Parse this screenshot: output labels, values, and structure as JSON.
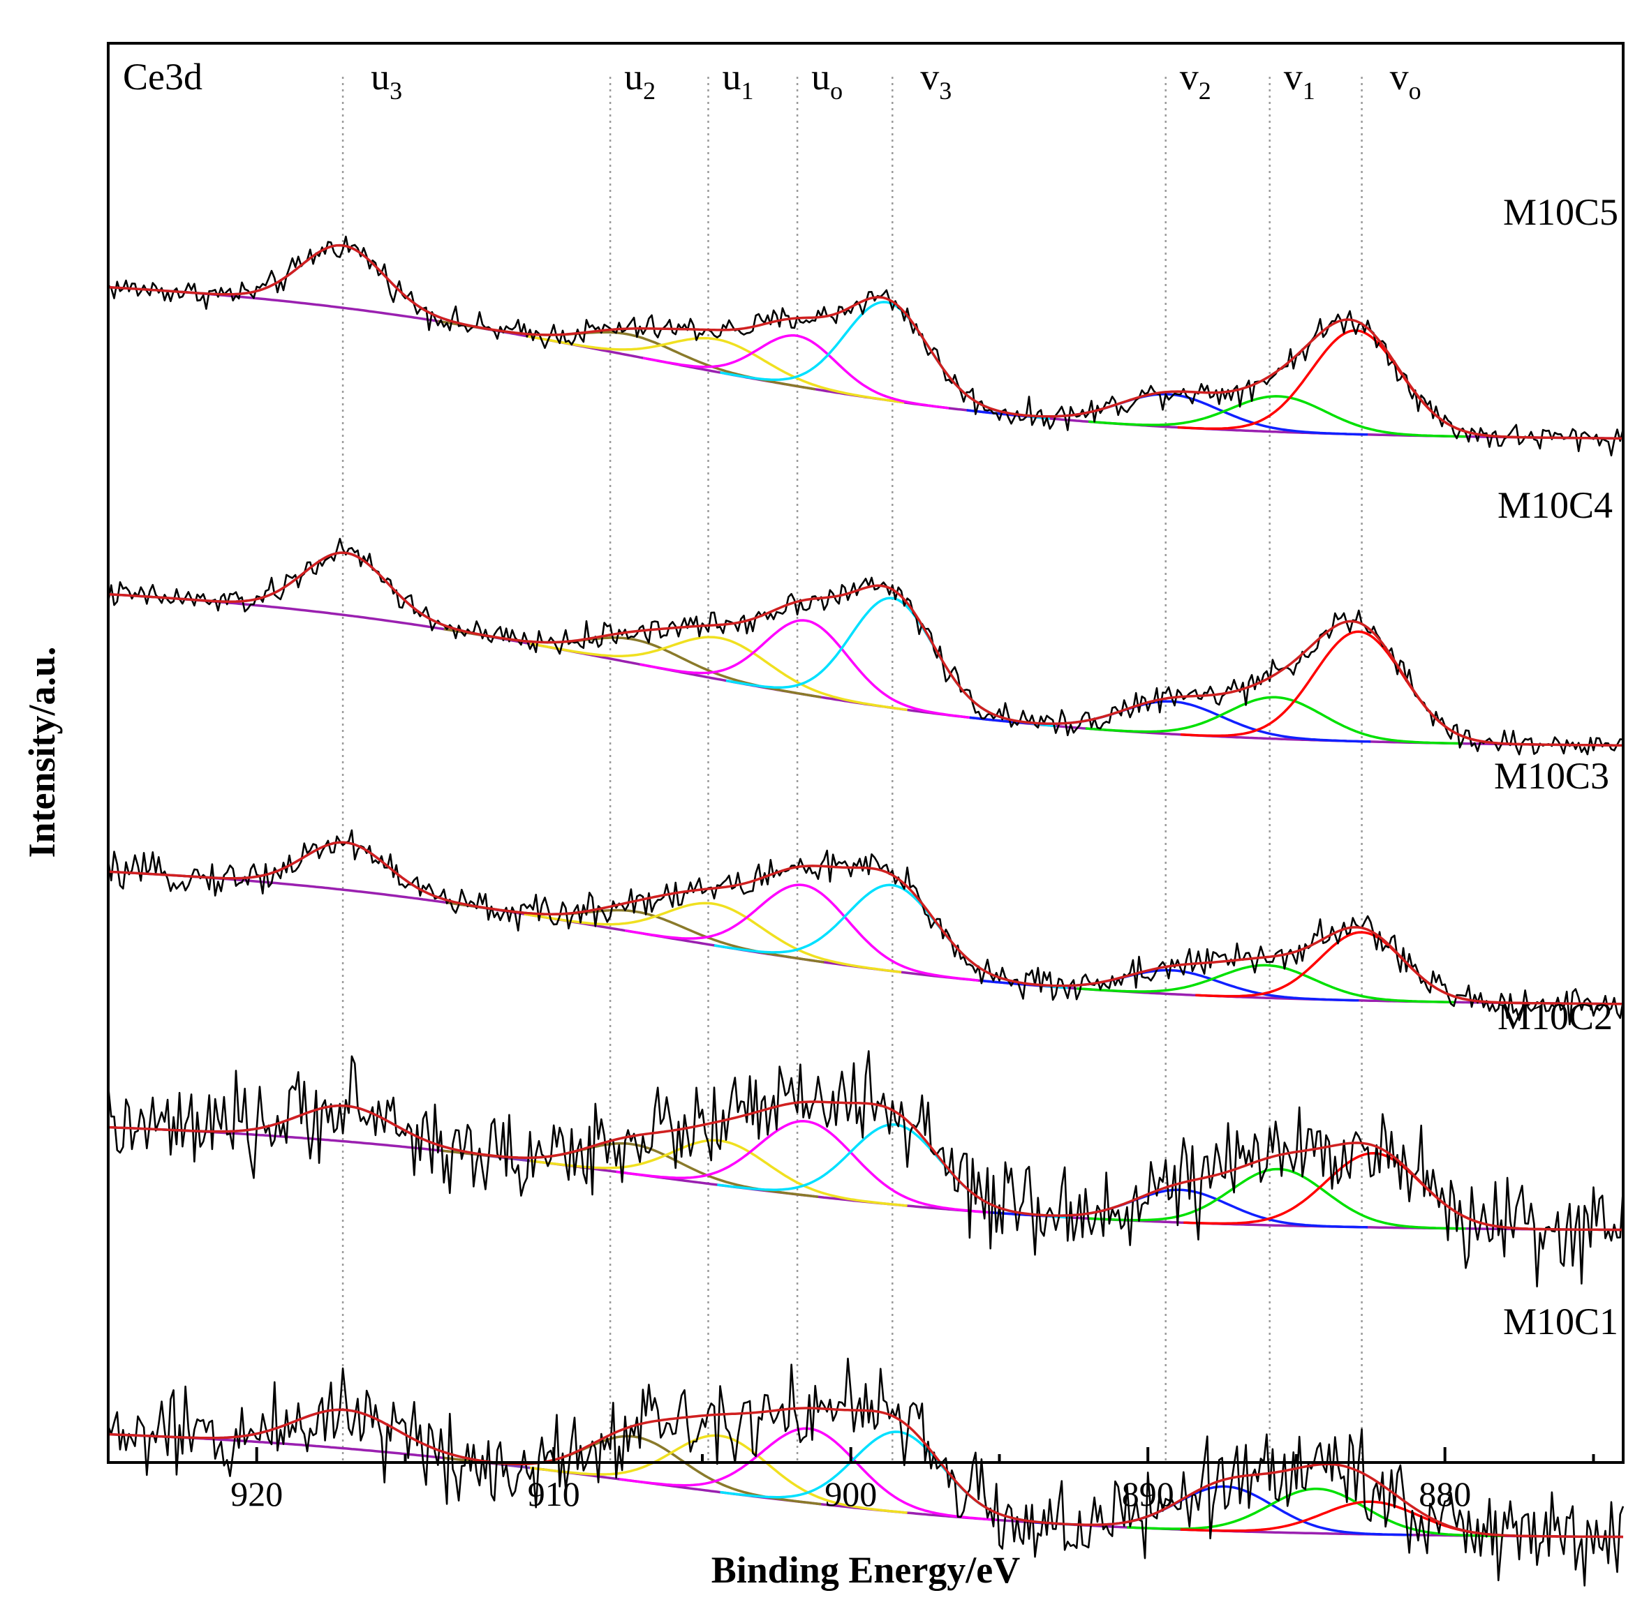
{
  "chart_data": {
    "type": "line",
    "element_label": "Ce3d",
    "xlabel": "Binding Energy/eV",
    "ylabel": "Intensity/a.u.",
    "xlim": [
      925,
      874
    ],
    "x_reversed": true,
    "x_ticks": [
      920,
      910,
      900,
      890,
      880
    ],
    "peak_markers": [
      {
        "base": "u",
        "sub": "3",
        "energy": 917.1
      },
      {
        "base": "u",
        "sub": "2",
        "energy": 908.1
      },
      {
        "base": "u",
        "sub": "1",
        "energy": 904.8
      },
      {
        "base": "u",
        "sub": "o",
        "energy": 901.8
      },
      {
        "base": "v",
        "sub": "3",
        "energy": 898.6
      },
      {
        "base": "v",
        "sub": "2",
        "energy": 889.4
      },
      {
        "base": "v",
        "sub": "1",
        "energy": 885.9
      },
      {
        "base": "v",
        "sub": "o",
        "energy": 882.8
      }
    ],
    "component_colors": {
      "u3": "#7f3fbf",
      "u2": "#8a7a2a",
      "u1": "#f0e020",
      "uo": "#ff00ff",
      "v3": "#00e0ff",
      "v2": "#1020ff",
      "v1": "#00e000",
      "vo": "#ff0000",
      "background": "#9a20b0",
      "envelope": "#d02020",
      "raw": "#000000"
    },
    "series": [
      {
        "name": "M10C5",
        "noise": 0.22,
        "bg_start": 0.15,
        "bg_end": 2.95,
        "peaks": [
          {
            "id": "u3",
            "center": 917.1,
            "height": 1.05,
            "width": 1.4
          },
          {
            "id": "u2",
            "center": 907.5,
            "height": 0.35,
            "width": 1.6
          },
          {
            "id": "u1",
            "center": 904.5,
            "height": 0.55,
            "width": 1.6
          },
          {
            "id": "uo",
            "center": 901.8,
            "height": 0.85,
            "width": 1.3
          },
          {
            "id": "v3",
            "center": 898.8,
            "height": 1.65,
            "width": 1.4
          },
          {
            "id": "v2",
            "center": 889.3,
            "height": 0.55,
            "width": 1.7
          },
          {
            "id": "v1",
            "center": 885.6,
            "height": 0.6,
            "width": 1.6
          },
          {
            "id": "vo",
            "center": 883.0,
            "height": 1.75,
            "width": 1.5
          }
        ]
      },
      {
        "name": "M10C4",
        "noise": 0.22,
        "bg_start": 0.15,
        "bg_end": 2.95,
        "peaks": [
          {
            "id": "u3",
            "center": 917.0,
            "height": 1.05,
            "width": 1.4
          },
          {
            "id": "u2",
            "center": 907.3,
            "height": 0.4,
            "width": 1.6
          },
          {
            "id": "u1",
            "center": 904.4,
            "height": 0.7,
            "width": 1.6
          },
          {
            "id": "uo",
            "center": 901.5,
            "height": 1.25,
            "width": 1.4
          },
          {
            "id": "v3",
            "center": 898.6,
            "height": 1.85,
            "width": 1.4
          },
          {
            "id": "v2",
            "center": 889.2,
            "height": 0.55,
            "width": 1.7
          },
          {
            "id": "v1",
            "center": 885.7,
            "height": 0.7,
            "width": 1.6
          },
          {
            "id": "vo",
            "center": 882.9,
            "height": 1.85,
            "width": 1.5
          }
        ]
      },
      {
        "name": "M10C3",
        "noise": 0.28,
        "bg_start": 0.15,
        "bg_end": 2.6,
        "peaks": [
          {
            "id": "u3",
            "center": 917.0,
            "height": 0.8,
            "width": 1.4
          },
          {
            "id": "u2",
            "center": 907.2,
            "height": 0.35,
            "width": 1.6
          },
          {
            "id": "u1",
            "center": 904.6,
            "height": 0.7,
            "width": 1.6
          },
          {
            "id": "uo",
            "center": 901.6,
            "height": 1.25,
            "width": 1.5
          },
          {
            "id": "v3",
            "center": 898.6,
            "height": 1.45,
            "width": 1.5
          },
          {
            "id": "v2",
            "center": 889.2,
            "height": 0.4,
            "width": 1.6
          },
          {
            "id": "v1",
            "center": 886.0,
            "height": 0.55,
            "width": 1.6
          },
          {
            "id": "vo",
            "center": 882.8,
            "height": 1.15,
            "width": 1.4
          }
        ]
      },
      {
        "name": "M10C2",
        "noise": 0.75,
        "bg_start": 0.15,
        "bg_end": 2.05,
        "peaks": [
          {
            "id": "u3",
            "center": 917.0,
            "height": 0.6,
            "width": 1.6
          },
          {
            "id": "u2",
            "center": 907.4,
            "height": 0.5,
            "width": 1.6
          },
          {
            "id": "u1",
            "center": 904.4,
            "height": 0.75,
            "width": 1.6
          },
          {
            "id": "uo",
            "center": 901.5,
            "height": 1.25,
            "width": 1.6
          },
          {
            "id": "v3",
            "center": 898.5,
            "height": 1.35,
            "width": 1.5
          },
          {
            "id": "v2",
            "center": 888.9,
            "height": 0.55,
            "width": 1.6
          },
          {
            "id": "v1",
            "center": 885.6,
            "height": 0.95,
            "width": 1.6
          },
          {
            "id": "vo",
            "center": 882.4,
            "height": 1.25,
            "width": 1.6
          }
        ]
      },
      {
        "name": "M10C1",
        "noise": 0.75,
        "bg_start": 0.15,
        "bg_end": 2.05,
        "peaks": [
          {
            "id": "u3",
            "center": 917.0,
            "height": 0.65,
            "width": 1.7
          },
          {
            "id": "u2",
            "center": 907.3,
            "height": 0.75,
            "width": 1.6
          },
          {
            "id": "u1",
            "center": 904.4,
            "height": 0.95,
            "width": 1.6
          },
          {
            "id": "uo",
            "center": 901.4,
            "height": 1.25,
            "width": 1.6
          },
          {
            "id": "v3",
            "center": 898.4,
            "height": 1.35,
            "width": 1.5
          },
          {
            "id": "v2",
            "center": 887.4,
            "height": 0.75,
            "width": 1.6
          },
          {
            "id": "v1",
            "center": 884.3,
            "height": 0.75,
            "width": 1.6
          },
          {
            "id": "vo",
            "center": 882.5,
            "height": 0.55,
            "width": 1.6
          }
        ]
      }
    ]
  }
}
